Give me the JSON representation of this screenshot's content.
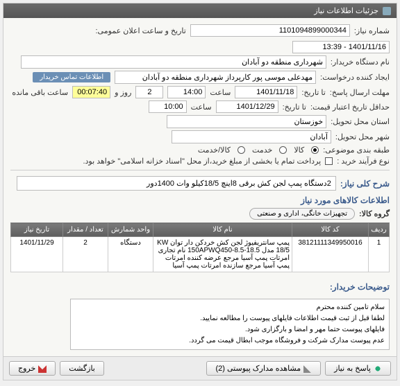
{
  "colors": {
    "header_bg": "#5e5e5e",
    "link_blue": "#3b5b8c",
    "countdown_bg": "#ffff99",
    "info_badge": "#6b8fb5"
  },
  "panel_title": "جزئیات اطلاعات نیاز",
  "fields": {
    "need_no_label": "شماره نیاز:",
    "need_no": "1101094899000344",
    "announce_label": "تاریخ و ساعت اعلان عمومی:",
    "announce_value": "1401/11/16 - 13:39",
    "buyer_label": "نام دستگاه خریدار:",
    "buyer_value": "شهرداری منطقه دو آبادان",
    "requester_label": "ایجاد کننده درخواست:",
    "requester_value": "مهدعلی موسی پور کارپرداز شهرداری منطقه دو آبادان",
    "contact_badge": "اطلاعات تماس خریدار",
    "deadline_label": "مهلت ارسال پاسخ:",
    "deadline_until": "تا تاریخ:",
    "deadline_date": "1401/11/18",
    "deadline_time_lbl": "ساعت",
    "deadline_time": "14:00",
    "days_remaining": "2",
    "days_and": "روز و",
    "countdown": "00:07:40",
    "countdown_suffix": "ساعت باقی مانده",
    "validity_label": "حداقل تاریخ اعتبار قیمت:",
    "validity_until": "تا تاریخ:",
    "validity_date": "1401/12/29",
    "validity_time": "10:00",
    "province_label": "استان محل تحویل:",
    "province_value": "خوزستان",
    "city_label": "شهر محل تحویل:",
    "city_value": "آبادان",
    "category_label": "طبقه بندی موضوعی:",
    "cat_goods": "کالا",
    "cat_service": "خدمت",
    "cat_both": "کالا/خدمت",
    "process_label": "نوع فرآیند خرید :",
    "process_note": "پرداخت تمام یا بخشی از مبلغ خرید،از محل \"اسناد خزانه اسلامی\" خواهد بود."
  },
  "need_title_label": "شرح کلی نیاز:",
  "need_title_value": "2دستگاه پمپ لجن کش برقی 8اینچ 18/5کیلو وات 1400دور",
  "items_section": "اطلاعات کالاهای مورد نیاز",
  "group_label": "گروه کالا:",
  "group_chip": "تجهیزات خانگی، اداری و صنعتی",
  "table": {
    "headers": [
      "ردیف",
      "کد کالا",
      "نام کالا",
      "واحد شمارش",
      "تعداد / مقدار",
      "تاریخ نیاز"
    ],
    "col_widths": [
      "30px",
      "110px",
      "auto",
      "65px",
      "65px",
      "75px"
    ],
    "rows": [
      {
        "idx": "1",
        "code": "3812111134995001​6",
        "name": "پمپ سانتریفیوژ لجن کش خردکن دار توان KW 18/5 مدل 18.5-150APWQ450-8.5 نام تجاری امرتات پمپ آسیا مرجع عرضه کننده امرتات پمپ آسیا مرجع سازنده امرتات پمپ آسیا",
        "unit": "دستگاه",
        "qty": "2",
        "date": "1401/11/29"
      }
    ]
  },
  "desc_label": "توضیحات خریدار:",
  "desc_lines": [
    "سلام تامین کننده محترم",
    "لطفا قبل از ثبت قیمت اطلاعات فایلهای پیوست را مطالعه نمایید.",
    "فایلهای پیوست حتما مهر و امضا و بارگزاری شود.",
    "عدم پیوست مدارک شرکت و فروشگاه موجب ابطال قیمت می گردد."
  ],
  "buttons": {
    "reply": "پاسخ به نیاز",
    "attachments": "مشاهده مدارک پیوستی (2)",
    "back": "بازگشت",
    "close": "خروج"
  }
}
